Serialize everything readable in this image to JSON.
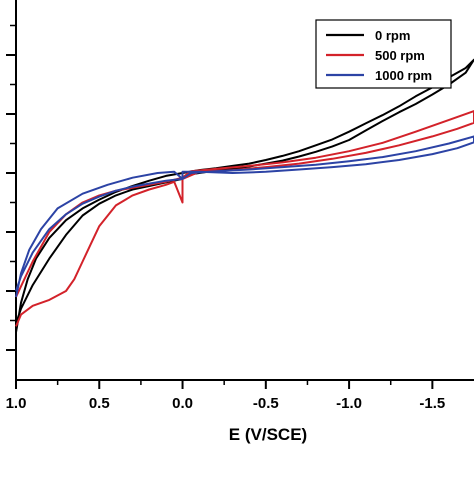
{
  "chart_data": {
    "type": "line",
    "title": "",
    "xlabel": "E (V/SCE)",
    "ylabel": "",
    "xlim": [
      1.0,
      -1.75
    ],
    "x_reversed": true,
    "ylim": [
      -6,
      0.5
    ],
    "x_ticks": [
      {
        "value": 1.0,
        "label": "1.0"
      },
      {
        "value": 0.5,
        "label": "0.5"
      },
      {
        "value": 0.0,
        "label": "0.0"
      },
      {
        "value": -0.5,
        "label": "-0.5"
      },
      {
        "value": -1.0,
        "label": "-1.0"
      },
      {
        "value": -1.5,
        "label": "-1.5"
      }
    ],
    "y_major_ticks": [
      0,
      -1,
      -2,
      -3,
      -4,
      -5,
      -6
    ],
    "grid": false,
    "legend_position": "top-right",
    "series": [
      {
        "name": "0 rpm",
        "color": "#000000",
        "x": [
          1.0,
          0.97,
          0.93,
          0.88,
          0.8,
          0.7,
          0.6,
          0.5,
          0.4,
          0.3,
          0.2,
          0.1,
          0.0,
          -0.1,
          -0.2,
          -0.3,
          -0.4,
          -0.5,
          -0.6,
          -0.7,
          -0.8,
          -0.9,
          -1.0,
          -1.1,
          -1.2,
          -1.3,
          -1.4,
          -1.5,
          -1.6,
          -1.7,
          -1.75,
          -1.7,
          -1.6,
          -1.5,
          -1.4,
          -1.3,
          -1.2,
          -1.1,
          -1.0,
          -0.9,
          -0.8,
          -0.7,
          -0.6,
          -0.5,
          -0.4,
          -0.3,
          -0.2,
          -0.1,
          -0.05,
          0.0,
          0.1,
          0.2,
          0.3,
          0.4,
          0.5,
          0.6,
          0.7,
          0.8,
          0.9,
          0.97,
          1.0
        ],
        "y": [
          -5.7,
          -5.2,
          -4.8,
          -4.45,
          -4.1,
          -3.8,
          -3.6,
          -3.45,
          -3.32,
          -3.22,
          -3.13,
          -3.05,
          -3.0,
          -2.95,
          -2.92,
          -2.88,
          -2.84,
          -2.78,
          -2.71,
          -2.63,
          -2.53,
          -2.43,
          -2.3,
          -2.16,
          -2.02,
          -1.87,
          -1.7,
          -1.55,
          -1.38,
          -1.22,
          -1.08,
          -1.3,
          -1.5,
          -1.67,
          -1.83,
          -1.97,
          -2.12,
          -2.28,
          -2.44,
          -2.55,
          -2.64,
          -2.72,
          -2.79,
          -2.84,
          -2.89,
          -2.93,
          -2.96,
          -3.0,
          -3.02,
          -3.1,
          -3.16,
          -3.22,
          -3.28,
          -3.38,
          -3.52,
          -3.72,
          -4.05,
          -4.45,
          -4.9,
          -5.3,
          -5.55
        ]
      },
      {
        "name": "500 rpm",
        "color": "#d3222a",
        "x": [
          1.0,
          0.97,
          0.9,
          0.8,
          0.7,
          0.65,
          0.6,
          0.55,
          0.5,
          0.4,
          0.3,
          0.2,
          0.1,
          0.05,
          0.0,
          0.0,
          -0.1,
          -0.3,
          -0.5,
          -0.7,
          -0.9,
          -1.1,
          -1.3,
          -1.5,
          -1.65,
          -1.75,
          -1.75,
          -1.6,
          -1.4,
          -1.2,
          -1.0,
          -0.8,
          -0.6,
          -0.4,
          -0.2,
          -0.05,
          0.0,
          0.1,
          0.2,
          0.3,
          0.4,
          0.5,
          0.6,
          0.7,
          0.8,
          0.9,
          1.0
        ],
        "y": [
          -5.6,
          -5.4,
          -5.25,
          -5.15,
          -5.0,
          -4.8,
          -4.5,
          -4.2,
          -3.9,
          -3.55,
          -3.38,
          -3.28,
          -3.2,
          -3.15,
          -3.5,
          -3.1,
          -2.98,
          -2.95,
          -2.9,
          -2.84,
          -2.76,
          -2.66,
          -2.53,
          -2.38,
          -2.25,
          -2.15,
          -1.95,
          -2.1,
          -2.3,
          -2.49,
          -2.63,
          -2.74,
          -2.82,
          -2.88,
          -2.93,
          -2.97,
          -3.08,
          -3.15,
          -3.2,
          -3.25,
          -3.3,
          -3.38,
          -3.5,
          -3.7,
          -4.0,
          -4.5,
          -5.1
        ]
      },
      {
        "name": "1000 rpm",
        "color": "#2c43a5",
        "x": [
          1.0,
          0.97,
          0.92,
          0.85,
          0.75,
          0.6,
          0.45,
          0.3,
          0.15,
          0.05,
          0.0,
          0.0,
          -0.1,
          -0.3,
          -0.5,
          -0.7,
          -0.9,
          -1.1,
          -1.3,
          -1.5,
          -1.65,
          -1.75,
          -1.75,
          -1.6,
          -1.4,
          -1.2,
          -1.0,
          -0.8,
          -0.6,
          -0.4,
          -0.2,
          -0.05,
          0.0,
          0.1,
          0.2,
          0.3,
          0.4,
          0.5,
          0.6,
          0.7,
          0.8,
          0.9,
          0.97,
          1.0
        ],
        "y": [
          -5.1,
          -4.7,
          -4.3,
          -3.95,
          -3.6,
          -3.35,
          -3.2,
          -3.08,
          -3.0,
          -2.98,
          -3.1,
          -2.98,
          -2.98,
          -3.0,
          -2.98,
          -2.94,
          -2.9,
          -2.85,
          -2.78,
          -2.68,
          -2.58,
          -2.48,
          -2.38,
          -2.5,
          -2.63,
          -2.73,
          -2.8,
          -2.86,
          -2.9,
          -2.94,
          -2.97,
          -3.0,
          -3.1,
          -3.13,
          -3.18,
          -3.23,
          -3.3,
          -3.4,
          -3.52,
          -3.7,
          -3.95,
          -4.35,
          -4.75,
          -5.0
        ]
      }
    ]
  }
}
